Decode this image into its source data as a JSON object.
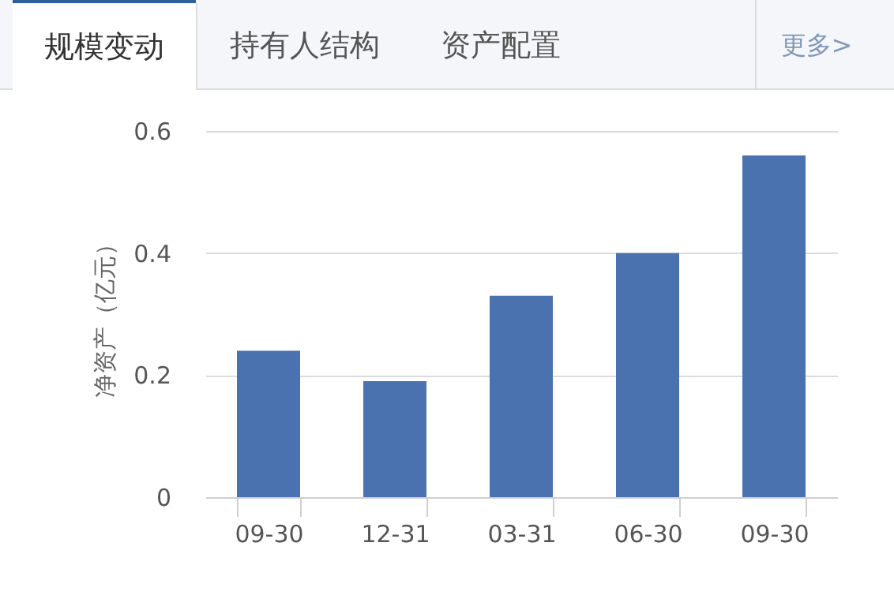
{
  "chart_data": {
    "type": "bar",
    "title": "规模变动",
    "annotations": [
      "持有人结构",
      "资产配置",
      "更多>"
    ],
    "ylabel": "净资产（亿元）",
    "categories": [
      "09-30",
      "12-31",
      "03-31",
      "06-30",
      "09-30"
    ],
    "values": [
      0.24,
      0.19,
      0.33,
      0.4,
      0.56
    ],
    "color": "#4a72ae",
    "ylim": [
      0,
      0.6
    ],
    "yticks": [
      0,
      0.2,
      0.4,
      0.6
    ],
    "grid": "y"
  }
}
